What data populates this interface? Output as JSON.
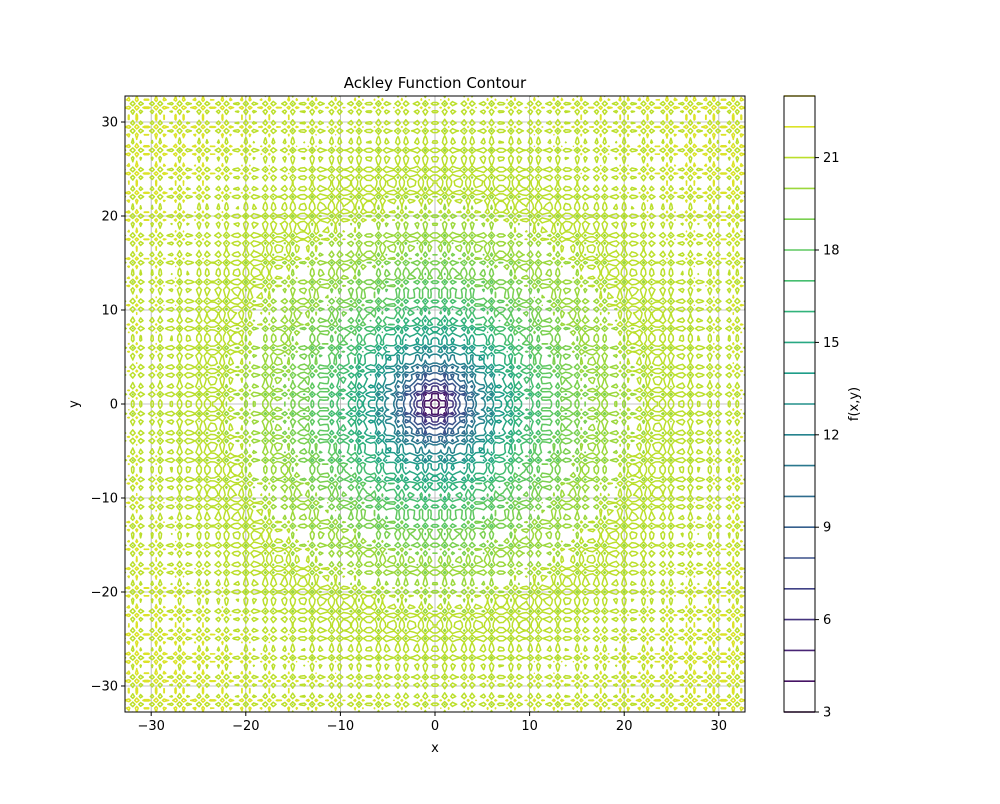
{
  "chart_data": {
    "type": "contour",
    "title": "Ackley Function Contour",
    "xlabel": "x",
    "ylabel": "y",
    "function": "Ackley",
    "xlim": [
      -32.768,
      32.768
    ],
    "ylim": [
      -32.768,
      32.768
    ],
    "x_ticks": [
      -30,
      -20,
      -10,
      0,
      10,
      20,
      30
    ],
    "y_ticks": [
      -30,
      -20,
      -10,
      0,
      10,
      20,
      30
    ],
    "x_tick_labels": [
      "−30",
      "−20",
      "−10",
      "0",
      "10",
      "20",
      "30"
    ],
    "y_tick_labels": [
      "−30",
      "−20",
      "−10",
      "0",
      "10",
      "20",
      "30"
    ],
    "grid": true,
    "colormap": "viridis",
    "contour_levels": [
      3,
      4,
      5,
      6,
      7,
      8,
      9,
      10,
      11,
      12,
      13,
      14,
      15,
      16,
      17,
      18,
      19,
      20,
      21,
      22,
      23
    ],
    "colorbar": {
      "label": "f(x,y)",
      "range": [
        3,
        23
      ],
      "ticks": [
        3,
        6,
        9,
        12,
        15,
        18,
        21
      ],
      "tick_labels": [
        "3",
        "6",
        "9",
        "12",
        "15",
        "18",
        "21"
      ]
    }
  }
}
